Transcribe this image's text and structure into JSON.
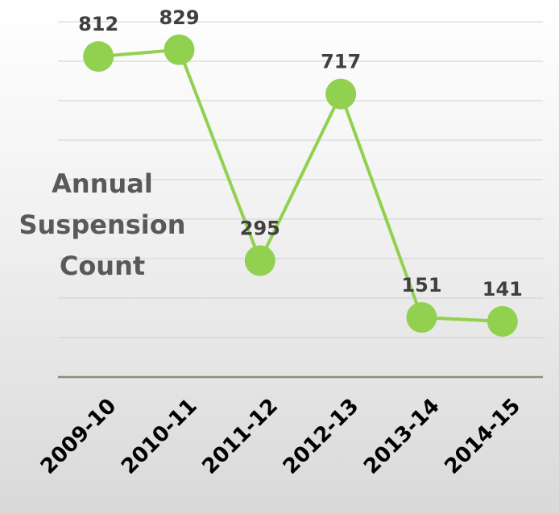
{
  "chart_data": {
    "type": "line",
    "title": "Annual Suspension Count",
    "categories": [
      "2009-10",
      "2010-11",
      "2011-12",
      "2012-13",
      "2013-14",
      "2014-15"
    ],
    "values": [
      812,
      829,
      295,
      717,
      151,
      141
    ],
    "color": "#92d050",
    "ylim": [
      0,
      900
    ],
    "yticks": [
      0,
      100,
      200,
      300,
      400,
      500,
      600,
      700,
      800,
      900
    ],
    "grid": true
  }
}
